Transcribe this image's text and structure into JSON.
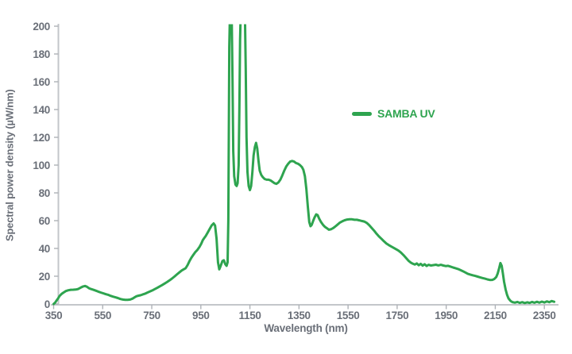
{
  "colors": {
    "series_green": "#2EA44F",
    "axis_line": "#C3C6CA",
    "tick_mark": "#AEB2B7",
    "label_gray": "#6A6F78",
    "background": "#FFFFFF"
  },
  "legend": {
    "entries": [
      {
        "label": "SAMBA UV",
        "color": "#2EA44F"
      }
    ],
    "position": "center-right"
  },
  "chart_data": {
    "type": "line",
    "title": "",
    "xlabel": "Wavelength (nm)",
    "ylabel": "Spectral power density (µW/nm)",
    "xlim": [
      350,
      2400
    ],
    "ylim": [
      0,
      200
    ],
    "x_ticks": [
      350,
      550,
      750,
      950,
      1150,
      1350,
      1550,
      1750,
      1950,
      2150,
      2350
    ],
    "y_ticks": [
      0,
      20,
      40,
      60,
      80,
      100,
      120,
      140,
      160,
      180,
      200
    ],
    "grid": false,
    "legend_position": "center-right",
    "clip_note": "Two emission spikes near 1070 nm and 1120 nm exceed the axis maximum and are clipped at 200 µW/nm",
    "series": [
      {
        "name": "SAMBA UV",
        "color": "#2EA44F",
        "points": [
          [
            350,
            0
          ],
          [
            356,
            1
          ],
          [
            362,
            2.5
          ],
          [
            368,
            4
          ],
          [
            374,
            5.7
          ],
          [
            382,
            7.2
          ],
          [
            390,
            8.2
          ],
          [
            400,
            9.3
          ],
          [
            410,
            9.9
          ],
          [
            420,
            10.2
          ],
          [
            430,
            10.3
          ],
          [
            440,
            10.4
          ],
          [
            450,
            10.8
          ],
          [
            460,
            11.8
          ],
          [
            470,
            12.6
          ],
          [
            478,
            13
          ],
          [
            486,
            12.4
          ],
          [
            494,
            11.4
          ],
          [
            502,
            10.8
          ],
          [
            512,
            10.2
          ],
          [
            522,
            9.6
          ],
          [
            532,
            8.9
          ],
          [
            542,
            8.3
          ],
          [
            552,
            7.7
          ],
          [
            562,
            7.1
          ],
          [
            572,
            6.6
          ],
          [
            582,
            5.9
          ],
          [
            592,
            5.3
          ],
          [
            602,
            4.8
          ],
          [
            612,
            4.3
          ],
          [
            622,
            3.6
          ],
          [
            632,
            3.2
          ],
          [
            642,
            3
          ],
          [
            652,
            3
          ],
          [
            662,
            3.2
          ],
          [
            672,
            3.9
          ],
          [
            680,
            4.8
          ],
          [
            688,
            5.6
          ],
          [
            696,
            6
          ],
          [
            704,
            6.3
          ],
          [
            712,
            6.8
          ],
          [
            722,
            7.4
          ],
          [
            732,
            8.2
          ],
          [
            742,
            9
          ],
          [
            752,
            9.8
          ],
          [
            762,
            10.7
          ],
          [
            772,
            11.6
          ],
          [
            782,
            12.6
          ],
          [
            792,
            13.6
          ],
          [
            802,
            14.7
          ],
          [
            812,
            15.8
          ],
          [
            822,
            17
          ],
          [
            832,
            18.3
          ],
          [
            842,
            19.7
          ],
          [
            852,
            21.2
          ],
          [
            862,
            22.7
          ],
          [
            872,
            24.1
          ],
          [
            880,
            25
          ],
          [
            888,
            25.8
          ],
          [
            896,
            28
          ],
          [
            904,
            31
          ],
          [
            912,
            33.5
          ],
          [
            920,
            35.5
          ],
          [
            928,
            37.5
          ],
          [
            936,
            39
          ],
          [
            944,
            41
          ],
          [
            952,
            43.5
          ],
          [
            958,
            46
          ],
          [
            964,
            47.5
          ],
          [
            970,
            49
          ],
          [
            978,
            51.5
          ],
          [
            986,
            54
          ],
          [
            994,
            56.5
          ],
          [
            1002,
            58
          ],
          [
            1008,
            56.5
          ],
          [
            1014,
            47
          ],
          [
            1020,
            30
          ],
          [
            1025,
            25
          ],
          [
            1031,
            27.5
          ],
          [
            1038,
            31
          ],
          [
            1044,
            31.5
          ],
          [
            1050,
            28.5
          ],
          [
            1055,
            27.5
          ],
          [
            1059,
            30
          ],
          [
            1062,
            60
          ],
          [
            1064,
            120
          ],
          [
            1066,
            185
          ],
          [
            1068,
            205
          ],
          [
            1076,
            205
          ],
          [
            1079,
            160
          ],
          [
            1082,
            110
          ],
          [
            1086,
            92
          ],
          [
            1091,
            86
          ],
          [
            1096,
            85
          ],
          [
            1100,
            87
          ],
          [
            1104,
            100
          ],
          [
            1107,
            140
          ],
          [
            1110,
            190
          ],
          [
            1112,
            205
          ],
          [
            1130,
            205
          ],
          [
            1133,
            170
          ],
          [
            1136,
            120
          ],
          [
            1140,
            95
          ],
          [
            1145,
            85
          ],
          [
            1150,
            82
          ],
          [
            1155,
            85
          ],
          [
            1160,
            95
          ],
          [
            1165,
            107
          ],
          [
            1170,
            113
          ],
          [
            1175,
            116
          ],
          [
            1180,
            112
          ],
          [
            1185,
            103
          ],
          [
            1190,
            96
          ],
          [
            1196,
            93
          ],
          [
            1202,
            91.5
          ],
          [
            1210,
            90
          ],
          [
            1218,
            89.5
          ],
          [
            1226,
            89.5
          ],
          [
            1234,
            89
          ],
          [
            1242,
            88
          ],
          [
            1250,
            87
          ],
          [
            1258,
            86.5
          ],
          [
            1266,
            87.5
          ],
          [
            1274,
            89.5
          ],
          [
            1282,
            92.5
          ],
          [
            1290,
            96
          ],
          [
            1298,
            99
          ],
          [
            1306,
            101
          ],
          [
            1314,
            102.5
          ],
          [
            1322,
            103
          ],
          [
            1330,
            102.5
          ],
          [
            1338,
            101.5
          ],
          [
            1346,
            101
          ],
          [
            1354,
            100
          ],
          [
            1362,
            98.5
          ],
          [
            1368,
            96.5
          ],
          [
            1374,
            92
          ],
          [
            1380,
            83
          ],
          [
            1386,
            70
          ],
          [
            1392,
            59
          ],
          [
            1397,
            56
          ],
          [
            1402,
            57
          ],
          [
            1408,
            60
          ],
          [
            1414,
            62.5
          ],
          [
            1420,
            64.5
          ],
          [
            1426,
            64
          ],
          [
            1432,
            61.5
          ],
          [
            1440,
            59
          ],
          [
            1448,
            57
          ],
          [
            1456,
            55.5
          ],
          [
            1464,
            54.5
          ],
          [
            1472,
            53.5
          ],
          [
            1480,
            53.8
          ],
          [
            1488,
            54.5
          ],
          [
            1496,
            55.5
          ],
          [
            1506,
            57
          ],
          [
            1516,
            58.5
          ],
          [
            1526,
            59.5
          ],
          [
            1536,
            60.3
          ],
          [
            1546,
            60.8
          ],
          [
            1556,
            61
          ],
          [
            1566,
            61
          ],
          [
            1576,
            60.6
          ],
          [
            1586,
            60.6
          ],
          [
            1596,
            60.2
          ],
          [
            1606,
            59.8
          ],
          [
            1616,
            59.4
          ],
          [
            1626,
            58.4
          ],
          [
            1636,
            56.8
          ],
          [
            1646,
            54.8
          ],
          [
            1656,
            52.8
          ],
          [
            1666,
            50.6
          ],
          [
            1676,
            48.6
          ],
          [
            1686,
            47
          ],
          [
            1696,
            45.2
          ],
          [
            1706,
            43.6
          ],
          [
            1716,
            42.4
          ],
          [
            1726,
            41.4
          ],
          [
            1736,
            40.4
          ],
          [
            1746,
            39.4
          ],
          [
            1756,
            38.4
          ],
          [
            1766,
            37
          ],
          [
            1776,
            35.2
          ],
          [
            1786,
            33.2
          ],
          [
            1796,
            31.2
          ],
          [
            1806,
            29.8
          ],
          [
            1814,
            29
          ],
          [
            1822,
            28.4
          ],
          [
            1830,
            29.2
          ],
          [
            1838,
            27.9
          ],
          [
            1846,
            28.9
          ],
          [
            1854,
            27.6
          ],
          [
            1862,
            28.6
          ],
          [
            1870,
            27.4
          ],
          [
            1878,
            28.2
          ],
          [
            1888,
            27.7
          ],
          [
            1898,
            28
          ],
          [
            1908,
            28.3
          ],
          [
            1918,
            27.8
          ],
          [
            1928,
            28.2
          ],
          [
            1938,
            27.7
          ],
          [
            1948,
            27.3
          ],
          [
            1958,
            27.5
          ],
          [
            1968,
            26.9
          ],
          [
            1978,
            26.3
          ],
          [
            1988,
            25.8
          ],
          [
            1998,
            25.2
          ],
          [
            2008,
            24.4
          ],
          [
            2018,
            23.6
          ],
          [
            2028,
            22.7
          ],
          [
            2038,
            21.8
          ],
          [
            2048,
            21.2
          ],
          [
            2058,
            20.7
          ],
          [
            2068,
            20.2
          ],
          [
            2078,
            19.7
          ],
          [
            2088,
            19.2
          ],
          [
            2098,
            18.7
          ],
          [
            2108,
            18.2
          ],
          [
            2118,
            17.7
          ],
          [
            2128,
            17.3
          ],
          [
            2138,
            17.4
          ],
          [
            2146,
            18
          ],
          [
            2154,
            19.5
          ],
          [
            2160,
            22
          ],
          [
            2166,
            26
          ],
          [
            2171,
            29.5
          ],
          [
            2176,
            27.5
          ],
          [
            2181,
            22
          ],
          [
            2186,
            16
          ],
          [
            2192,
            10.5
          ],
          [
            2198,
            6.5
          ],
          [
            2204,
            4
          ],
          [
            2212,
            2.2
          ],
          [
            2220,
            1.4
          ],
          [
            2230,
            1
          ],
          [
            2240,
            1.5
          ],
          [
            2250,
            0.8
          ],
          [
            2260,
            1.3
          ],
          [
            2270,
            0.7
          ],
          [
            2280,
            1.2
          ],
          [
            2290,
            0.8
          ],
          [
            2300,
            1.5
          ],
          [
            2310,
            0.9
          ],
          [
            2320,
            1.6
          ],
          [
            2330,
            1
          ],
          [
            2340,
            1.7
          ],
          [
            2350,
            1.1
          ],
          [
            2360,
            1.9
          ],
          [
            2370,
            1.3
          ],
          [
            2380,
            2.1
          ],
          [
            2390,
            1.6
          ]
        ]
      }
    ]
  }
}
